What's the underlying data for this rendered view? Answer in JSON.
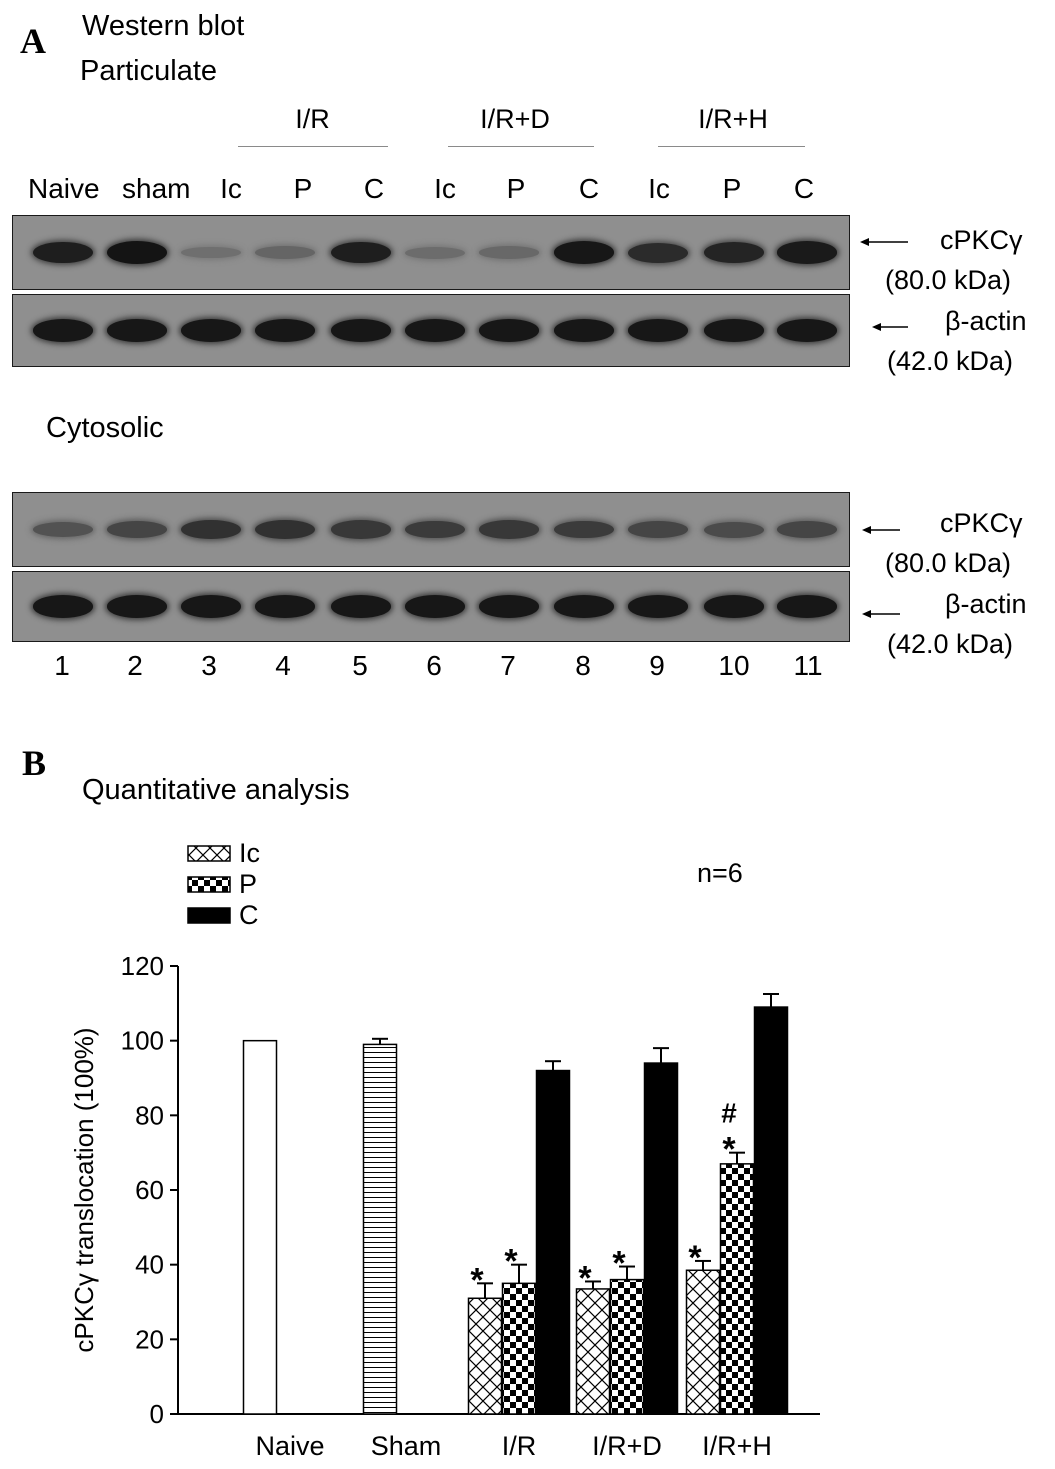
{
  "panel_a": {
    "letter": "A",
    "title": "Western blot",
    "fraction_top": "Particulate",
    "fraction_bottom": "Cytosolic",
    "groups": [
      "I/R",
      "I/R+D",
      "I/R+H"
    ],
    "lanes": [
      "Naive",
      "sham",
      "Ic",
      "P",
      "C",
      "Ic",
      "P",
      "C",
      "Ic",
      "P",
      "C"
    ],
    "lane_numbers": [
      "1",
      "2",
      "3",
      "4",
      "5",
      "6",
      "7",
      "8",
      "9",
      "10",
      "11"
    ],
    "markers": [
      {
        "name": "cPKCγ",
        "size": "(80.0 kDa)"
      },
      {
        "name": "β-actin",
        "size": "(42.0 kDa)"
      },
      {
        "name": "cPKCγ",
        "size": "(80.0 kDa)"
      },
      {
        "name": "β-actin",
        "size": "(42.0 kDa)"
      }
    ],
    "band_intensity": {
      "particulate_cpkc": [
        0.85,
        0.92,
        0.22,
        0.3,
        0.85,
        0.25,
        0.28,
        0.9,
        0.75,
        0.8,
        0.88
      ],
      "particulate_actin": [
        0.9,
        0.9,
        0.9,
        0.9,
        0.9,
        0.9,
        0.9,
        0.9,
        0.9,
        0.9,
        0.9
      ],
      "cytosolic_cpkc": [
        0.45,
        0.55,
        0.7,
        0.7,
        0.65,
        0.62,
        0.65,
        0.62,
        0.55,
        0.5,
        0.55
      ],
      "cytosolic_actin": [
        0.9,
        0.9,
        0.9,
        0.9,
        0.9,
        0.9,
        0.9,
        0.9,
        0.9,
        0.9,
        0.9
      ]
    }
  },
  "panel_b": {
    "letter": "B",
    "title": "Quantitative analysis",
    "n_label": "n=6",
    "legend": [
      "Ic",
      "P",
      "C"
    ]
  },
  "chart_data": {
    "type": "bar",
    "categories": [
      "Naive",
      "Sham",
      "I/R",
      "I/R+D",
      "I/R+H"
    ],
    "ylabel": "cPKCγ translocation (100%)",
    "xlabel": "",
    "ylim": [
      0,
      120
    ],
    "yticks": [
      0,
      20,
      40,
      60,
      80,
      100,
      120
    ],
    "series": [
      {
        "name": "Naive",
        "values": [
          100,
          null,
          null,
          null,
          null
        ],
        "errors": [
          0,
          null,
          null,
          null,
          null
        ],
        "pattern": "open"
      },
      {
        "name": "Sham",
        "values": [
          null,
          99,
          null,
          null,
          null
        ],
        "errors": [
          null,
          1.5,
          null,
          null,
          null
        ],
        "pattern": "hlines"
      },
      {
        "name": "Ic",
        "values": [
          null,
          null,
          31,
          33.5,
          38.5
        ],
        "errors": [
          null,
          null,
          4,
          2,
          2.5
        ],
        "pattern": "crosshatch"
      },
      {
        "name": "P",
        "values": [
          null,
          null,
          35,
          36,
          67
        ],
        "errors": [
          null,
          null,
          5,
          3.5,
          3
        ],
        "pattern": "checker"
      },
      {
        "name": "C",
        "values": [
          null,
          null,
          92,
          94,
          109
        ],
        "errors": [
          null,
          null,
          2.5,
          4,
          3.5
        ],
        "pattern": "solid"
      }
    ],
    "annotations": [
      {
        "category": "I/R",
        "series": "Ic",
        "text": "*"
      },
      {
        "category": "I/R",
        "series": "P",
        "text": "*"
      },
      {
        "category": "I/R+D",
        "series": "Ic",
        "text": "*"
      },
      {
        "category": "I/R+D",
        "series": "P",
        "text": "*"
      },
      {
        "category": "I/R+H",
        "series": "Ic",
        "text": "*"
      },
      {
        "category": "I/R+H",
        "series": "P",
        "text": "*"
      },
      {
        "category": "I/R+H",
        "series": "P",
        "text": "#"
      }
    ]
  }
}
